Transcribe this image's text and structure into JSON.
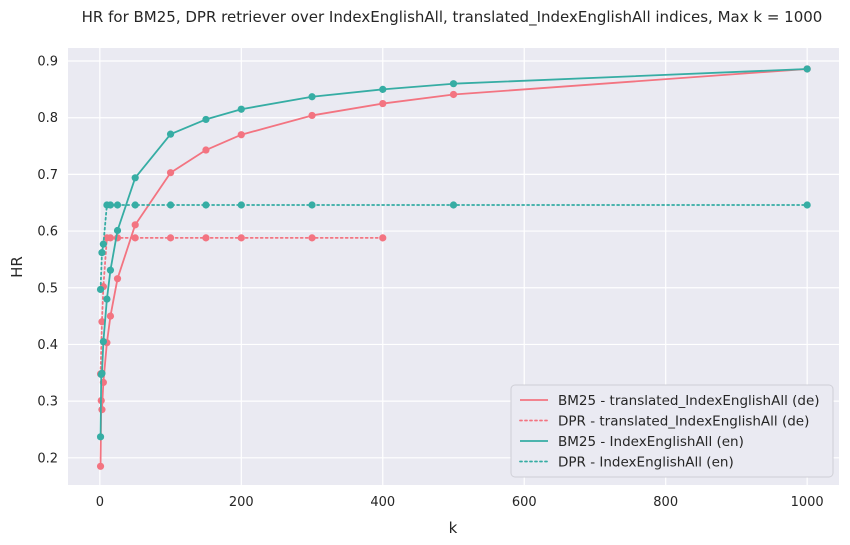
{
  "chart_data": {
    "type": "line",
    "title": "HR for BM25, DPR retriever over IndexEnglishAll, translated_IndexEnglishAll indices, Max k = 1000",
    "xlabel": "k",
    "ylabel": "HR",
    "xlim": [
      -45,
      1045
    ],
    "ylim": [
      0.152,
      0.923
    ],
    "xticks": [
      0,
      200,
      400,
      600,
      800,
      1000
    ],
    "yticks": [
      0.2,
      0.3,
      0.4,
      0.5,
      0.6,
      0.7,
      0.8,
      0.9
    ],
    "xtick_labels": [
      "0",
      "200",
      "400",
      "600",
      "800",
      "1000"
    ],
    "ytick_labels": [
      "0.2",
      "0.3",
      "0.4",
      "0.5",
      "0.6",
      "0.7",
      "0.8",
      "0.9"
    ],
    "grid": true,
    "legend_position": "lower-right",
    "background": "#eaeaf2",
    "series": [
      {
        "name": "BM25 - translated_IndexEnglishAll (de)",
        "color": "#f37481",
        "style": "solid",
        "x": [
          1,
          2,
          3,
          5,
          10,
          15,
          25,
          50,
          100,
          150,
          200,
          300,
          400,
          500,
          1000
        ],
        "y": [
          0.185,
          0.301,
          0.285,
          0.333,
          0.403,
          0.45,
          0.516,
          0.611,
          0.703,
          0.743,
          0.77,
          0.804,
          0.825,
          0.841,
          0.886
        ]
      },
      {
        "name": "DPR - translated_IndexEnglishAll (de)",
        "color": "#f37481",
        "style": "dotted",
        "x": [
          1,
          3,
          5,
          10,
          15,
          25,
          50,
          100,
          150,
          200,
          300,
          400
        ],
        "y": [
          0.348,
          0.44,
          0.502,
          0.588,
          0.588,
          0.588,
          0.588,
          0.588,
          0.588,
          0.588,
          0.588,
          0.588
        ]
      },
      {
        "name": "BM25 - IndexEnglishAll (en)",
        "color": "#36ada4",
        "style": "solid",
        "x": [
          1,
          2,
          3,
          5,
          10,
          15,
          25,
          50,
          100,
          150,
          200,
          300,
          400,
          500,
          1000
        ],
        "y": [
          0.237,
          0.347,
          0.349,
          0.405,
          0.48,
          0.531,
          0.601,
          0.694,
          0.771,
          0.797,
          0.815,
          0.837,
          0.85,
          0.86,
          0.886
        ]
      },
      {
        "name": "DPR - IndexEnglishAll (en)",
        "color": "#36ada4",
        "style": "dotted",
        "x": [
          1,
          3,
          5,
          10,
          15,
          25,
          50,
          100,
          150,
          200,
          300,
          500,
          1000
        ],
        "y": [
          0.497,
          0.562,
          0.577,
          0.646,
          0.646,
          0.646,
          0.646,
          0.646,
          0.646,
          0.646,
          0.646,
          0.646,
          0.646
        ]
      }
    ]
  }
}
